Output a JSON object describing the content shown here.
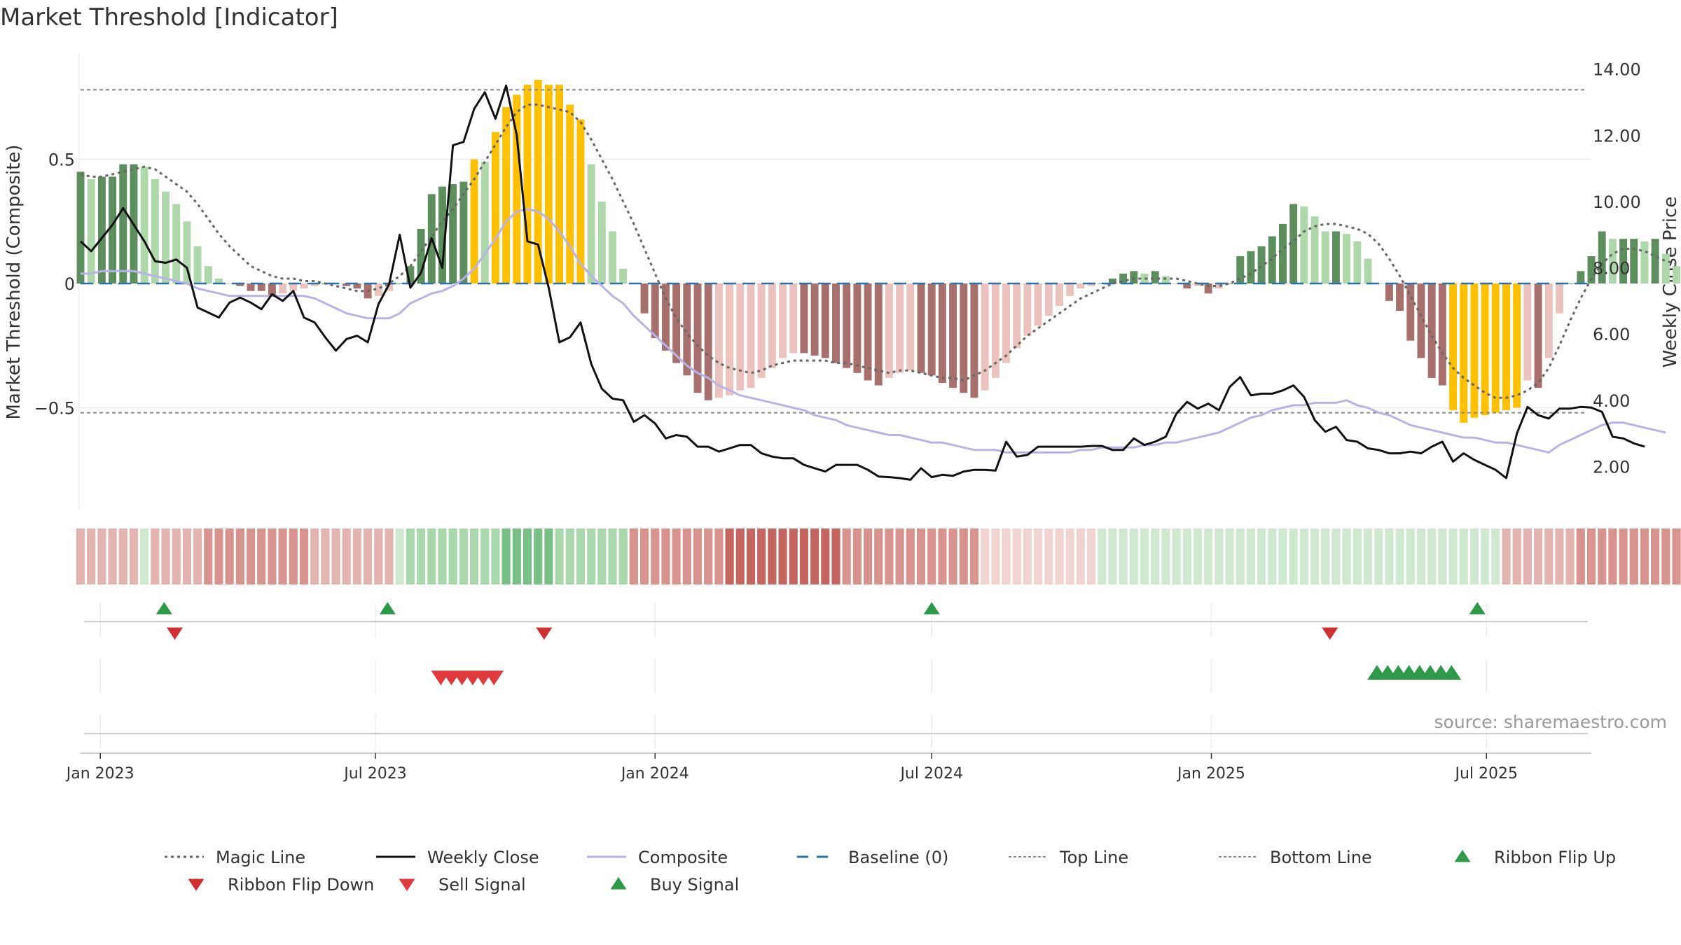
{
  "chart_data": {
    "type": "bar",
    "title": "Market Threshold [Indicator]",
    "left_ylabel": "Market Threshold (Composite)",
    "right_ylabel": "Weekly Close Price",
    "left_yticks": [
      "0.5",
      "0",
      "−0.5"
    ],
    "left_ytick_values": [
      0.5,
      0,
      -0.5
    ],
    "left_ylim": [
      -0.91,
      0.93
    ],
    "right_yticks": [
      "2.00",
      "4.00",
      "6.00",
      "8.00",
      "10.00",
      "12.00",
      "14.00"
    ],
    "right_ytick_values": [
      2,
      4,
      6,
      8,
      10,
      12,
      14
    ],
    "right_ylim": [
      0.7,
      14.5
    ],
    "x_start": "2022-12-19",
    "x_end": "2025-09-08",
    "xticks": [
      {
        "date": "2023-01-01",
        "label": "Jan 2023"
      },
      {
        "date": "2023-07-01",
        "label": "Jul 2023"
      },
      {
        "date": "2024-01-01",
        "label": "Jan 2024"
      },
      {
        "date": "2024-07-01",
        "label": "Jul 2024"
      },
      {
        "date": "2025-01-01",
        "label": "Jan 2025"
      },
      {
        "date": "2025-07-01",
        "label": "Jul 2025"
      }
    ],
    "top_line": 0.78,
    "bottom_line": -0.52,
    "baseline": 0,
    "composite_bars": [
      0.45,
      0.42,
      0.43,
      0.43,
      0.48,
      0.48,
      0.47,
      0.42,
      0.37,
      0.32,
      0.25,
      0.15,
      0.07,
      0.02,
      0,
      -0.01,
      -0.03,
      -0.03,
      -0.05,
      -0.04,
      -0.03,
      -0.02,
      -0.01,
      0,
      0,
      -0.01,
      -0.02,
      -0.06,
      -0.05,
      -0.03,
      0,
      0.07,
      0.22,
      0.36,
      0.39,
      0.4,
      0.41,
      0.5,
      0.49,
      0.61,
      0.71,
      0.76,
      0.8,
      0.82,
      0.8,
      0.8,
      0.72,
      0.66,
      0.48,
      0.33,
      0.21,
      0.06,
      0,
      -0.12,
      -0.22,
      -0.27,
      -0.32,
      -0.37,
      -0.44,
      -0.47,
      -0.46,
      -0.45,
      -0.43,
      -0.42,
      -0.38,
      -0.34,
      -0.3,
      -0.28,
      -0.28,
      -0.29,
      -0.3,
      -0.32,
      -0.34,
      -0.36,
      -0.39,
      -0.41,
      -0.38,
      -0.36,
      -0.35,
      -0.36,
      -0.37,
      -0.4,
      -0.42,
      -0.44,
      -0.46,
      -0.43,
      -0.38,
      -0.32,
      -0.26,
      -0.21,
      -0.17,
      -0.13,
      -0.09,
      -0.05,
      -0.02,
      -0.01,
      0,
      0.02,
      0.04,
      0.05,
      0.04,
      0.05,
      0.03,
      0,
      -0.02,
      -0.01,
      -0.04,
      -0.02,
      0,
      0.11,
      0.13,
      0.15,
      0.19,
      0.24,
      0.32,
      0.31,
      0.27,
      0.21,
      0.21,
      0.2,
      0.17,
      0.1,
      0,
      -0.07,
      -0.11,
      -0.23,
      -0.3,
      -0.38,
      -0.41,
      -0.51,
      -0.56,
      -0.54,
      -0.53,
      -0.52,
      -0.51,
      -0.5,
      -0.39,
      -0.42,
      -0.3,
      -0.12,
      0,
      0.05,
      0.11,
      0.21,
      0.18,
      0.18,
      0.18,
      0.17,
      0.18,
      0.12,
      0.07,
      0.02,
      -0.03
    ],
    "weekly_close": [
      8.8,
      8.5,
      8.9,
      9.3,
      9.8,
      9.3,
      8.8,
      8.2,
      8.15,
      8.25,
      8,
      6.8,
      6.65,
      6.5,
      6.95,
      7.1,
      6.95,
      6.75,
      7.2,
      7.0,
      7.3,
      6.5,
      6.35,
      5.9,
      5.5,
      5.85,
      5.95,
      5.75,
      6.9,
      7.5,
      9.0,
      7.4,
      7.85,
      8.9,
      8.0,
      11.7,
      11.8,
      12.8,
      13.3,
      12.5,
      13.5,
      12.0,
      8.8,
      8.7,
      7.4,
      5.75,
      5.9,
      6.35,
      5.1,
      4.35,
      4.05,
      4.0,
      3.35,
      3.55,
      3.3,
      2.85,
      2.95,
      2.9,
      2.6,
      2.6,
      2.45,
      2.55,
      2.65,
      2.65,
      2.4,
      2.3,
      2.25,
      2.25,
      2.05,
      1.95,
      1.85,
      2.05,
      2.05,
      2.05,
      1.9,
      1.7,
      1.68,
      1.65,
      1.6,
      1.95,
      1.68,
      1.75,
      1.72,
      1.85,
      1.9,
      1.9,
      1.88,
      2.75,
      2.3,
      2.35,
      2.6,
      2.6,
      2.6,
      2.6,
      2.6,
      2.62,
      2.62,
      2.5,
      2.5,
      2.85,
      2.65,
      2.75,
      2.9,
      3.6,
      3.95,
      3.75,
      3.9,
      3.7,
      4.4,
      4.7,
      4.15,
      4.2,
      4.2,
      4.3,
      4.45,
      4.1,
      3.4,
      3.05,
      3.2,
      2.8,
      2.75,
      2.55,
      2.5,
      2.4,
      2.4,
      2.45,
      2.4,
      2.6,
      2.75,
      2.15,
      2.4,
      2.2,
      2.05,
      1.9,
      1.65,
      3.0,
      3.8,
      3.55,
      3.45,
      3.75,
      3.75,
      3.8,
      3.78,
      3.65,
      2.9,
      2.85,
      2.7,
      2.6
    ],
    "composite_line": [
      0.04,
      0.04,
      0.05,
      0.05,
      0.05,
      0.05,
      0.04,
      0.03,
      0.02,
      0.01,
      0,
      -0.02,
      -0.03,
      -0.04,
      -0.05,
      -0.05,
      -0.05,
      -0.05,
      -0.05,
      -0.05,
      -0.05,
      -0.05,
      -0.06,
      -0.08,
      -0.1,
      -0.12,
      -0.13,
      -0.14,
      -0.14,
      -0.14,
      -0.12,
      -0.08,
      -0.06,
      -0.04,
      -0.03,
      -0.01,
      0.02,
      0.06,
      0.12,
      0.18,
      0.25,
      0.29,
      0.3,
      0.29,
      0.26,
      0.21,
      0.15,
      0.08,
      0.03,
      -0.01,
      -0.05,
      -0.08,
      -0.13,
      -0.17,
      -0.21,
      -0.25,
      -0.29,
      -0.33,
      -0.36,
      -0.38,
      -0.41,
      -0.43,
      -0.45,
      -0.46,
      -0.47,
      -0.48,
      -0.49,
      -0.5,
      -0.51,
      -0.53,
      -0.54,
      -0.55,
      -0.57,
      -0.58,
      -0.59,
      -0.6,
      -0.61,
      -0.61,
      -0.62,
      -0.63,
      -0.64,
      -0.64,
      -0.65,
      -0.66,
      -0.67,
      -0.67,
      -0.67,
      -0.68,
      -0.68,
      -0.68,
      -0.68,
      -0.68,
      -0.68,
      -0.68,
      -0.67,
      -0.67,
      -0.66,
      -0.66,
      -0.66,
      -0.66,
      -0.65,
      -0.65,
      -0.64,
      -0.64,
      -0.63,
      -0.62,
      -0.61,
      -0.6,
      -0.58,
      -0.56,
      -0.54,
      -0.53,
      -0.51,
      -0.5,
      -0.49,
      -0.49,
      -0.48,
      -0.48,
      -0.48,
      -0.47,
      -0.49,
      -0.5,
      -0.52,
      -0.53,
      -0.55,
      -0.57,
      -0.58,
      -0.59,
      -0.6,
      -0.61,
      -0.62,
      -0.62,
      -0.63,
      -0.64,
      -0.64,
      -0.65,
      -0.66,
      -0.67,
      -0.68,
      -0.65,
      -0.63,
      -0.61,
      -0.59,
      -0.57,
      -0.56,
      -0.56,
      -0.57,
      -0.58,
      -0.59,
      -0.6
    ],
    "magic_line": [
      0.44,
      0.43,
      0.43,
      0.44,
      0.45,
      0.46,
      0.47,
      0.46,
      0.43,
      0.4,
      0.37,
      0.32,
      0.26,
      0.2,
      0.15,
      0.11,
      0.07,
      0.05,
      0.03,
      0.02,
      0.02,
      0.01,
      0.01,
      0,
      -0.01,
      -0.02,
      -0.03,
      -0.03,
      -0.02,
      0,
      0.03,
      0.07,
      0.13,
      0.19,
      0.25,
      0.3,
      0.36,
      0.42,
      0.49,
      0.56,
      0.63,
      0.69,
      0.72,
      0.72,
      0.71,
      0.7,
      0.69,
      0.65,
      0.58,
      0.5,
      0.42,
      0.33,
      0.24,
      0.14,
      0.04,
      -0.06,
      -0.14,
      -0.2,
      -0.25,
      -0.29,
      -0.32,
      -0.34,
      -0.35,
      -0.36,
      -0.35,
      -0.33,
      -0.32,
      -0.31,
      -0.31,
      -0.31,
      -0.31,
      -0.32,
      -0.32,
      -0.33,
      -0.34,
      -0.35,
      -0.36,
      -0.35,
      -0.35,
      -0.36,
      -0.37,
      -0.38,
      -0.38,
      -0.39,
      -0.37,
      -0.35,
      -0.32,
      -0.29,
      -0.25,
      -0.21,
      -0.18,
      -0.15,
      -0.12,
      -0.09,
      -0.06,
      -0.04,
      -0.02,
      0,
      0.01,
      0.02,
      0.02,
      0.02,
      0.02,
      0.02,
      0.01,
      0,
      -0.01,
      -0.01,
      0,
      0.02,
      0.04,
      0.07,
      0.1,
      0.14,
      0.17,
      0.21,
      0.23,
      0.24,
      0.24,
      0.23,
      0.22,
      0.2,
      0.16,
      0.1,
      0.03,
      -0.05,
      -0.13,
      -0.21,
      -0.28,
      -0.34,
      -0.38,
      -0.41,
      -0.44,
      -0.46,
      -0.46,
      -0.45,
      -0.43,
      -0.4,
      -0.34,
      -0.25,
      -0.15,
      -0.06,
      0.02,
      0.08,
      0.12,
      0.14,
      0.14,
      0.13,
      0.11,
      0.09,
      0.08
    ],
    "regime_ribbon": [
      2,
      2,
      2,
      2,
      2,
      2,
      -1,
      2,
      2,
      2,
      2,
      2,
      3,
      3,
      3,
      3,
      3,
      3,
      3,
      3,
      3,
      3,
      2,
      2,
      2,
      2,
      2,
      2,
      2,
      2,
      -1,
      -2,
      -2,
      -2,
      -2,
      -2,
      -2,
      -2,
      -2,
      -2,
      -3,
      -3,
      -3,
      -3,
      -3,
      -2,
      -2,
      -2,
      -2,
      -2,
      -2,
      -2,
      3,
      3,
      3,
      3,
      3,
      3,
      3,
      3,
      3,
      4,
      4,
      4,
      4,
      4,
      4,
      4,
      4,
      4,
      4,
      4,
      3,
      3,
      3,
      3,
      3,
      3,
      3,
      3,
      3,
      3,
      3,
      3,
      3,
      1,
      1,
      1,
      1,
      1,
      1,
      1,
      1,
      1,
      1,
      1,
      -1,
      -1,
      -1,
      -1,
      -1,
      -1,
      -1,
      -1,
      -1,
      -1,
      -1,
      -1,
      -1,
      -1,
      -1,
      -1,
      -1,
      -1,
      -1,
      -1,
      -1,
      -1,
      -1,
      -1,
      -1,
      -1,
      -1,
      -1,
      -1,
      -1,
      -1,
      -1,
      -1,
      -1,
      -1,
      -1,
      -1,
      -1,
      2,
      2,
      2,
      2,
      2,
      2,
      2,
      3,
      3,
      3,
      3,
      3,
      3,
      3,
      3,
      3,
      3,
      3,
      3,
      -2,
      -2,
      -2,
      -2,
      -2,
      -2,
      -2,
      -2,
      -2,
      -2,
      -2,
      -1
    ],
    "ribbon_flip_up_dates": [
      "2023-02-12",
      "2023-07-09",
      "2024-07-01",
      "2025-06-25"
    ],
    "ribbon_flip_down_dates": [
      "2023-02-19",
      "2023-10-20",
      "2025-03-20"
    ],
    "sell_signal_dates": [
      "2023-08-13",
      "2023-08-20",
      "2023-08-27",
      "2023-09-03",
      "2023-09-10",
      "2023-09-17"
    ],
    "buy_signal_dates": [
      "2025-04-20",
      "2025-04-27",
      "2025-05-04",
      "2025-05-11",
      "2025-05-18",
      "2025-05-25",
      "2025-06-01",
      "2025-06-08"
    ],
    "source": "source: sharemaestro.com",
    "legend": [
      {
        "name": "Magic Line",
        "kind": "dotted",
        "color": "#666666"
      },
      {
        "name": "Weekly Close",
        "kind": "solid",
        "color": "#111111"
      },
      {
        "name": "Composite",
        "kind": "solid",
        "color": "#b8b2e6"
      },
      {
        "name": "Baseline (0)",
        "kind": "dashed",
        "color": "#2f6fa3"
      },
      {
        "name": "Top Line",
        "kind": "dotted-fine",
        "color": "#888888"
      },
      {
        "name": "Bottom Line",
        "kind": "dotted-fine",
        "color": "#888888"
      },
      {
        "name": "Ribbon Flip Up",
        "kind": "tri-up",
        "color": "#2e9a48"
      },
      {
        "name": "Ribbon Flip Down",
        "kind": "tri-down",
        "color": "#d03030"
      },
      {
        "name": "Sell Signal",
        "kind": "tri-down",
        "color": "#e0393e"
      },
      {
        "name": "Buy Signal",
        "kind": "tri-up",
        "color": "#2e9a48"
      }
    ],
    "colors": {
      "extreme_bar": "#ffc000",
      "pos_strong": "#5d8e5d",
      "pos_light": "#aed8a9",
      "neg_strong": "#a8706c",
      "neg_light": "#ebc2bd"
    }
  }
}
